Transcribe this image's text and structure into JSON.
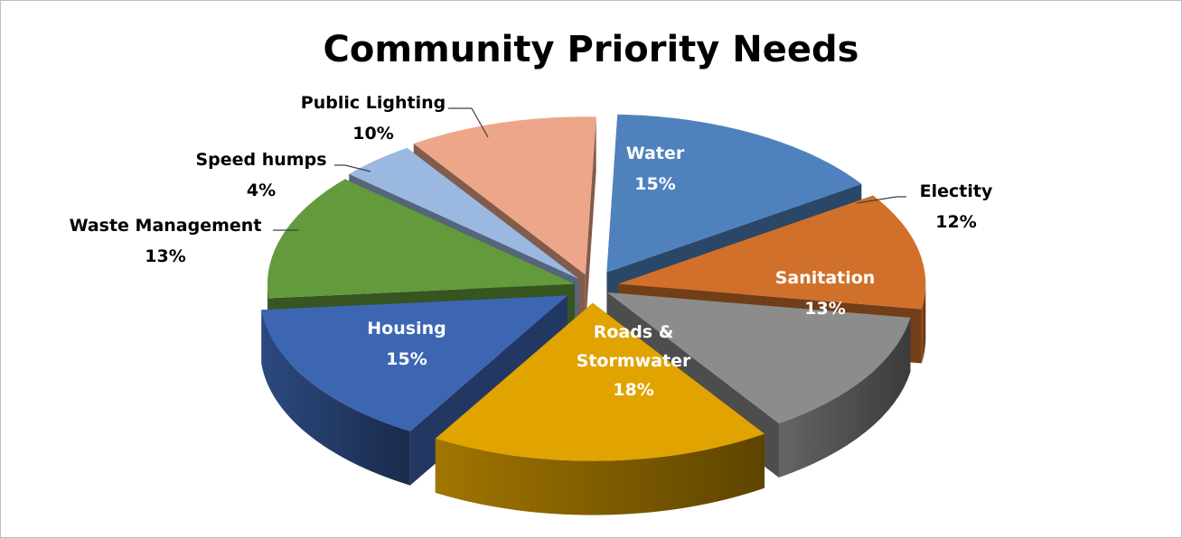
{
  "chart_data": {
    "type": "pie",
    "style": "3d-exploded",
    "title": "Community Priority Needs",
    "slices": [
      {
        "label": "Water",
        "value": 15,
        "value_label": "15%",
        "color": "#4f81bd",
        "label_color": "#ffffff",
        "label_lines": [
          "Water"
        ]
      },
      {
        "label": "Electity",
        "value": 12,
        "value_label": "12%",
        "color": "#d0702b",
        "label_color": "#000000",
        "label_lines": [
          "Electity"
        ]
      },
      {
        "label": "Sanitation",
        "value": 13,
        "value_label": "13%",
        "color": "#8c8c8c",
        "label_color": "#ffffff",
        "label_lines": [
          "Sanitation"
        ]
      },
      {
        "label": "Roads & Stormwater",
        "value": 18,
        "value_label": "18%",
        "color": "#e0a300",
        "label_color": "#ffffff",
        "label_lines": [
          "Roads &",
          "Stormwater"
        ]
      },
      {
        "label": "Housing",
        "value": 15,
        "value_label": "15%",
        "color": "#3d66b2",
        "label_color": "#ffffff",
        "label_lines": [
          "Housing"
        ]
      },
      {
        "label": "Waste Management",
        "value": 13,
        "value_label": "13%",
        "color": "#629a3c",
        "label_color": "#000000",
        "label_lines": [
          "Waste Management"
        ]
      },
      {
        "label": "Speed humps",
        "value": 4,
        "value_label": "4%",
        "color": "#9ab8e0",
        "label_color": "#000000",
        "label_lines": [
          "Speed humps"
        ]
      },
      {
        "label": "Public Lighting",
        "value": 10,
        "value_label": "10%",
        "color": "#eda689",
        "label_color": "#000000",
        "label_lines": [
          "Public Lighting"
        ]
      }
    ]
  }
}
